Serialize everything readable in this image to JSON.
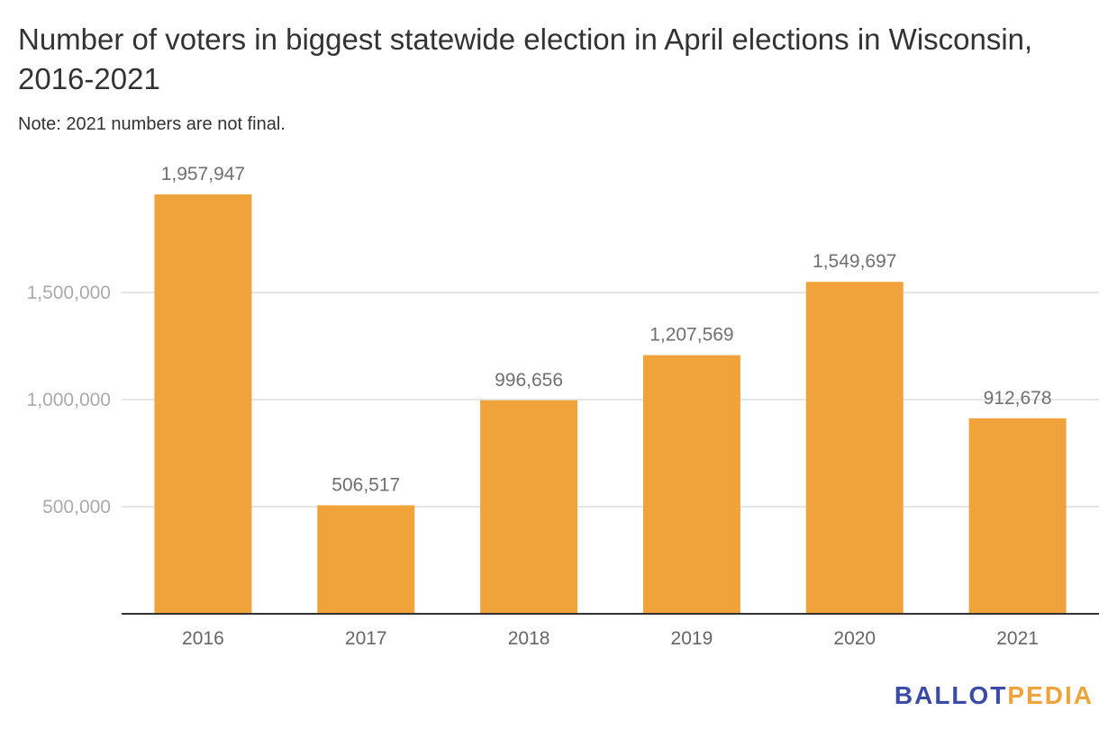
{
  "chart_data": {
    "type": "bar",
    "title": "Number of voters in biggest statewide election in April elections in Wisconsin, 2016-2021",
    "subtitle": "Note: 2021 numbers are not final.",
    "xlabel": "",
    "ylabel": "",
    "categories": [
      "2016",
      "2017",
      "2018",
      "2019",
      "2020",
      "2021"
    ],
    "values": [
      1957947,
      506517,
      996656,
      1207569,
      1549697,
      912678
    ],
    "data_labels": [
      "1,957,947",
      "506,517",
      "996,656",
      "1,207,569",
      "1,549,697",
      "912,678"
    ],
    "yticks": [
      500000,
      1000000,
      1500000
    ],
    "ytick_labels": [
      "500,000",
      "1,000,000",
      "1,500,000"
    ],
    "ylim": [
      0,
      2000000
    ],
    "grid": true,
    "bar_color": "#f0a33a",
    "grid_color": "#e6e6e6",
    "axis_color": "#333333"
  },
  "branding": {
    "logo_part1": "BALLOT",
    "logo_part2": "PEDIA",
    "logo_color1": "#3a4ba6",
    "logo_color2": "#f0a33a"
  }
}
